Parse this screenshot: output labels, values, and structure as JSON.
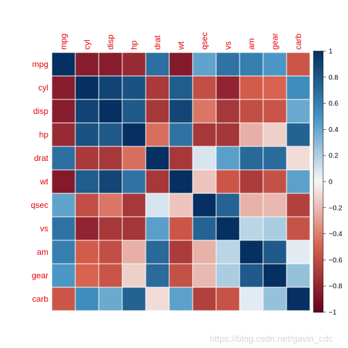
{
  "chart_data": {
    "type": "heatmap",
    "variables": [
      "mpg",
      "cyl",
      "disp",
      "hp",
      "drat",
      "wt",
      "qsec",
      "vs",
      "am",
      "gear",
      "carb"
    ],
    "values": [
      [
        1.0,
        -0.85,
        -0.85,
        -0.78,
        0.68,
        -0.87,
        0.42,
        0.66,
        0.6,
        0.48,
        -0.55
      ],
      [
        -0.85,
        1.0,
        0.9,
        0.83,
        -0.7,
        0.78,
        -0.59,
        -0.81,
        -0.52,
        -0.49,
        0.53
      ],
      [
        -0.85,
        0.9,
        1.0,
        0.79,
        -0.71,
        0.89,
        -0.43,
        -0.71,
        -0.59,
        -0.56,
        0.39
      ],
      [
        -0.78,
        0.83,
        0.79,
        1.0,
        -0.45,
        0.66,
        -0.71,
        -0.72,
        -0.24,
        -0.13,
        0.75
      ],
      [
        0.68,
        -0.7,
        -0.71,
        -0.45,
        1.0,
        -0.71,
        0.09,
        0.44,
        0.71,
        0.7,
        -0.09
      ],
      [
        -0.87,
        0.78,
        0.89,
        0.66,
        -0.71,
        1.0,
        -0.17,
        -0.55,
        -0.69,
        -0.58,
        0.43
      ],
      [
        0.42,
        -0.59,
        -0.43,
        -0.71,
        0.09,
        -0.17,
        1.0,
        0.74,
        -0.23,
        -0.21,
        -0.66
      ],
      [
        0.66,
        -0.81,
        -0.71,
        -0.72,
        0.44,
        -0.55,
        0.74,
        1.0,
        0.17,
        0.21,
        -0.57
      ],
      [
        0.6,
        -0.52,
        -0.59,
        -0.24,
        0.71,
        -0.69,
        -0.23,
        0.17,
        1.0,
        0.79,
        0.06
      ],
      [
        0.48,
        -0.49,
        -0.56,
        -0.13,
        0.7,
        -0.58,
        -0.21,
        0.21,
        0.79,
        1.0,
        0.27
      ],
      [
        -0.55,
        0.53,
        0.39,
        0.75,
        -0.09,
        0.43,
        -0.66,
        -0.57,
        0.06,
        0.27,
        1.0
      ]
    ],
    "colorbar": {
      "range": [
        -1,
        1
      ],
      "ticks": [
        "1",
        "0.8",
        "0.6",
        "0.4",
        "0.2",
        "0",
        "−0.2",
        "−0.4",
        "−0.6",
        "−0.8",
        "−1"
      ]
    },
    "colors": {
      "neg_end": "#67001f",
      "neg_mid": "#d6604d",
      "neutral": "#f7f7f7",
      "pos_mid": "#4393c3",
      "pos_end": "#053061",
      "label": "#e8000b"
    }
  },
  "watermark": "https://blog.csdn.net/gavin_cdc"
}
